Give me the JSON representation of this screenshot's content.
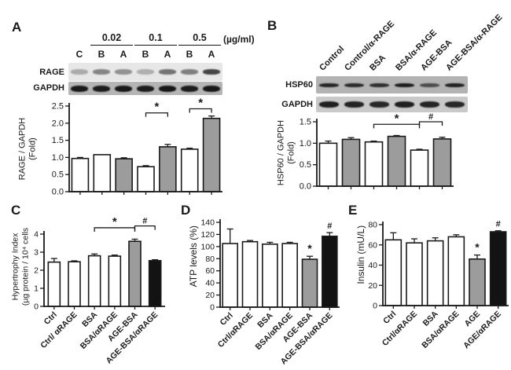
{
  "colors": {
    "bar_white": "#ffffff",
    "bar_gray": "#9c9c9c",
    "bar_black": "#131313",
    "axis": "#1a1a1a"
  },
  "panels": {
    "A": {
      "label": "A",
      "blot": {
        "concentrations": [
          "0.02",
          "0.1",
          "0.5"
        ],
        "unit": "(µg/ml)",
        "lanes": [
          "C",
          "B",
          "A",
          "B",
          "A",
          "B",
          "A"
        ],
        "rows": [
          {
            "label": "RAGE",
            "bg": "#e7e7e7",
            "band_color": "45,45,45",
            "band_h": 7,
            "intensities": [
              0.32,
              0.52,
              0.46,
              0.3,
              0.62,
              0.56,
              0.88
            ]
          },
          {
            "label": "GAPDH",
            "bg": "#b5b5b5",
            "band_color": "12,12,12",
            "band_h": 8,
            "intensities": [
              0.92,
              0.9,
              0.92,
              0.9,
              0.93,
              0.9,
              0.93
            ]
          }
        ]
      }
    },
    "B": {
      "label": "B",
      "blot": {
        "lanes": [
          "Control",
          "Control/α-RAGE",
          "BSA",
          "BSA/α-RAGE",
          "AGE-BSA",
          "AGE-BSA/α-RAGE"
        ],
        "rows": [
          {
            "label": "HSP60",
            "bg": "#b3b3b3",
            "band_color": "12,12,12",
            "band_h": 5,
            "intensities": [
              0.85,
              0.82,
              0.8,
              0.9,
              0.62,
              0.88
            ]
          },
          {
            "label": "GAPDH",
            "bg": "#c9c9c9",
            "band_color": "12,12,12",
            "band_h": 8,
            "intensities": [
              0.9,
              0.88,
              0.85,
              0.9,
              0.88,
              0.85
            ]
          }
        ]
      }
    },
    "C": {
      "label": "C"
    },
    "D": {
      "label": "D"
    },
    "E": {
      "label": "E"
    }
  },
  "chart_data": [
    {
      "panel": "A",
      "type": "bar",
      "categories": [
        "C",
        "B",
        "A",
        "B",
        "A",
        "B",
        "A"
      ],
      "group_labels": [
        "0.02",
        "0.1",
        "0.5"
      ],
      "group_unit": "(µg/ml)",
      "values": [
        0.97,
        1.08,
        0.96,
        0.73,
        1.31,
        1.24,
        2.14
      ],
      "errors": [
        0.03,
        0,
        0.03,
        0.03,
        0.07,
        0.03,
        0.07
      ],
      "bar_colors": [
        "white",
        "white",
        "gray",
        "white",
        "gray",
        "white",
        "gray"
      ],
      "ylabel": "RAGE / GAPDH (Fold)",
      "ylabel_lines": [
        "RAGE / GAPDH",
        "(Fold)"
      ],
      "xlabel": "",
      "ylim": [
        0,
        2.5
      ],
      "yticks": [
        "0.0",
        "0.5",
        "1.0",
        "1.5",
        "2.0",
        "2.5"
      ],
      "show_x_labels": false,
      "grid": false,
      "significance": [
        {
          "from": 3,
          "to": 4,
          "label": "*",
          "at": 2.3
        },
        {
          "from": 5,
          "to": 6,
          "label": "*",
          "at": 2.42
        }
      ]
    },
    {
      "panel": "B",
      "type": "bar",
      "categories": [
        "Control",
        "Control/α-RAGE",
        "BSA",
        "BSA/α-RAGE",
        "AGE-BSA",
        "AGE-BSA/α-RAGE"
      ],
      "values": [
        1.0,
        1.09,
        1.03,
        1.16,
        0.84,
        1.1
      ],
      "errors": [
        0.05,
        0.04,
        0.02,
        0.02,
        0.02,
        0.04
      ],
      "bar_colors": [
        "white",
        "gray",
        "white",
        "gray",
        "white",
        "gray"
      ],
      "ylabel": "HSP60 / GAPDH (Fold)",
      "ylabel_lines": [
        "HSP60 / GAPDH",
        "(Fold)"
      ],
      "xlabel": "",
      "ylim": [
        0,
        1.5
      ],
      "yticks": [
        "0.0",
        "0.5",
        "1.0",
        "1.5"
      ],
      "show_x_labels": false,
      "grid": false,
      "significance": [
        {
          "from": 2,
          "to": 4,
          "label": "*",
          "at": 1.44
        },
        {
          "from": 4,
          "to": 5,
          "label": "#",
          "at": 1.5
        }
      ]
    },
    {
      "panel": "C",
      "type": "bar",
      "categories": [
        "Ctrl",
        "Ctrl/ αRAGE",
        "BSA",
        "BSA/αRAGE",
        "AGE-BSA",
        "AGE-BSA/αRAGE"
      ],
      "values": [
        2.45,
        2.47,
        2.8,
        2.78,
        3.6,
        2.53
      ],
      "errors": [
        0.2,
        0.05,
        0.1,
        0.06,
        0.12,
        0.05
      ],
      "bar_colors": [
        "white",
        "white",
        "white",
        "white",
        "gray",
        "black"
      ],
      "ylabel": "Hypertrophy Index (µg protein / 10⁴ cells",
      "ylabel_lines": [
        "Hypertrophy Index",
        "(µg protein / 10⁴ cells"
      ],
      "xlabel": "",
      "ylim": [
        0,
        4
      ],
      "yticks": [
        "0",
        "1",
        "2",
        "3",
        "4"
      ],
      "show_x_labels": true,
      "grid": false,
      "significance": [
        {
          "from": 2,
          "to": 4,
          "label": "*",
          "at": 4.35
        },
        {
          "from": 4,
          "to": 5,
          "label": "#",
          "at": 4.45
        }
      ]
    },
    {
      "panel": "D",
      "type": "bar",
      "categories": [
        "Ctrl",
        "Ctrl/αRAGE",
        "BSA",
        "BSA/αRAGE",
        "AGE-BSA",
        "AGE-BSA/αRAGE"
      ],
      "values": [
        105,
        108,
        104,
        105,
        79,
        117
      ],
      "errors": [
        24,
        2,
        3,
        2,
        5,
        6
      ],
      "bar_colors": [
        "white",
        "white",
        "white",
        "white",
        "gray",
        "black"
      ],
      "ylabel": "ATP levels (%)",
      "ylabel_lines": [
        "ATP levels (%)"
      ],
      "xlabel": "",
      "ylim": [
        0,
        140
      ],
      "yticks": [
        "0",
        "20",
        "40",
        "60",
        "80",
        "100",
        "120",
        "140"
      ],
      "show_x_labels": true,
      "grid": false,
      "bar_marks": [
        {
          "bar": 4,
          "label": "*"
        },
        {
          "bar": 5,
          "label": "#"
        }
      ]
    },
    {
      "panel": "E",
      "type": "bar",
      "categories": [
        "Ctrl",
        "Ctrl/αRAGE",
        "BSA",
        "BSA/αRAGE",
        "AGE",
        "AGE/αRAGE"
      ],
      "values": [
        65,
        62,
        64,
        68,
        46,
        73
      ],
      "errors": [
        7,
        4,
        3,
        2,
        4,
        1
      ],
      "bar_colors": [
        "white",
        "white",
        "white",
        "white",
        "gray",
        "black"
      ],
      "ylabel": "Insulin (mU/L)",
      "ylabel_lines": [
        "Insulin (mU/L)"
      ],
      "xlabel": "",
      "ylim": [
        0,
        80
      ],
      "yticks": [
        "0",
        "20",
        "40",
        "60",
        "80"
      ],
      "show_x_labels": true,
      "grid": false,
      "bar_marks": [
        {
          "bar": 4,
          "label": "*"
        },
        {
          "bar": 5,
          "label": "#"
        }
      ]
    }
  ]
}
